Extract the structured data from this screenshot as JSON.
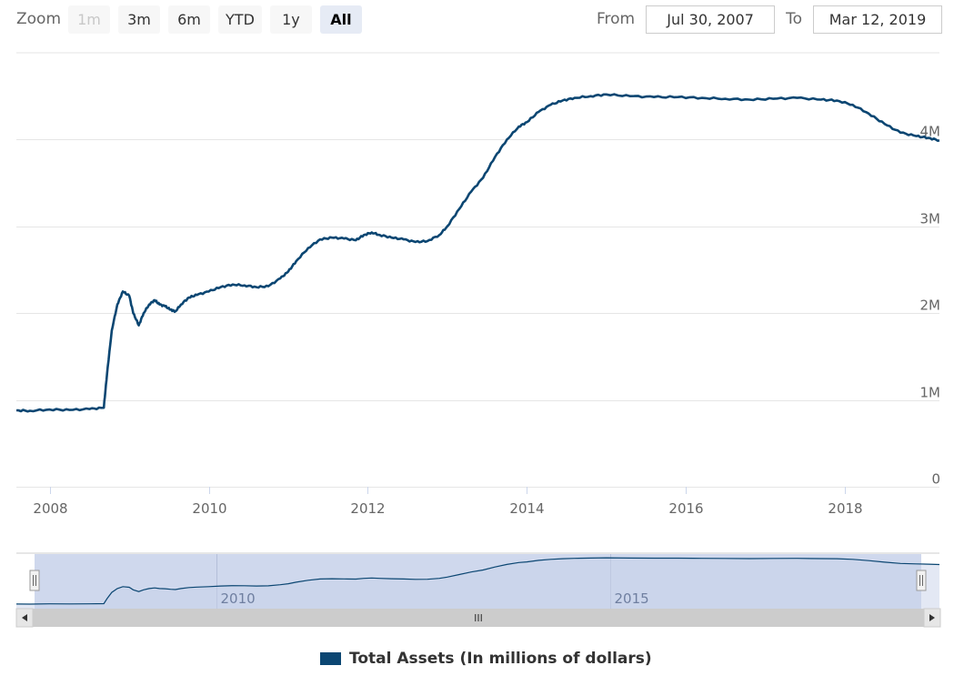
{
  "range_selector": {
    "zoom_label": "Zoom",
    "buttons": [
      {
        "label": "1m",
        "state": "disabled"
      },
      {
        "label": "3m",
        "state": "normal"
      },
      {
        "label": "6m",
        "state": "normal"
      },
      {
        "label": "YTD",
        "state": "normal"
      },
      {
        "label": "1y",
        "state": "normal"
      },
      {
        "label": "All",
        "state": "selected"
      }
    ],
    "from_label": "From",
    "from_value": "Jul 30, 2007",
    "to_label": "To",
    "to_value": "Mar 12, 2019"
  },
  "navigator": {
    "labels": [
      "2010",
      "2015"
    ],
    "scrollbar_grip": "III"
  },
  "colors": {
    "series": "#0b4672",
    "navigator_fill": "#c7d1ea",
    "grid": "#e6e6e6"
  },
  "chart_data": {
    "type": "line",
    "title": "",
    "xlabel": "",
    "ylabel": "",
    "xlim": [
      2007.58,
      2019.19
    ],
    "ylim": [
      0,
      5000000
    ],
    "y_ticks": [
      0,
      1000000,
      2000000,
      3000000,
      4000000
    ],
    "y_tick_labels": [
      "0",
      "1M",
      "2M",
      "3M",
      "4M"
    ],
    "x_ticks": [
      2008,
      2010,
      2012,
      2014,
      2016,
      2018
    ],
    "x_tick_labels": [
      "2008",
      "2010",
      "2012",
      "2014",
      "2016",
      "2018"
    ],
    "legend": {
      "position": "bottom-center"
    },
    "series": [
      {
        "name": "Total Assets (In millions of dollars)",
        "x": [
          2007.58,
          2007.75,
          2008.0,
          2008.25,
          2008.5,
          2008.68,
          2008.72,
          2008.78,
          2008.85,
          2008.92,
          2009.0,
          2009.05,
          2009.12,
          2009.18,
          2009.25,
          2009.32,
          2009.38,
          2009.45,
          2009.52,
          2009.58,
          2009.65,
          2009.75,
          2009.85,
          2010.0,
          2010.15,
          2010.3,
          2010.45,
          2010.6,
          2010.75,
          2010.9,
          2011.0,
          2011.1,
          2011.25,
          2011.4,
          2011.55,
          2011.7,
          2011.85,
          2011.95,
          2012.05,
          2012.15,
          2012.3,
          2012.45,
          2012.6,
          2012.75,
          2012.9,
          2013.0,
          2013.15,
          2013.3,
          2013.45,
          2013.6,
          2013.75,
          2013.9,
          2014.0,
          2014.15,
          2014.3,
          2014.45,
          2014.6,
          2014.8,
          2015.0,
          2015.3,
          2015.6,
          2015.9,
          2016.2,
          2016.5,
          2016.8,
          2017.1,
          2017.4,
          2017.7,
          2017.9,
          2018.1,
          2018.3,
          2018.5,
          2018.7,
          2018.9,
          2019.05,
          2019.19
        ],
        "values": [
          880000,
          875000,
          890000,
          885000,
          895000,
          910000,
          1300000,
          1800000,
          2100000,
          2250000,
          2200000,
          2000000,
          1860000,
          2000000,
          2100000,
          2150000,
          2100000,
          2080000,
          2040000,
          2020000,
          2100000,
          2180000,
          2210000,
          2250000,
          2300000,
          2330000,
          2320000,
          2300000,
          2310000,
          2400000,
          2480000,
          2600000,
          2750000,
          2850000,
          2870000,
          2860000,
          2840000,
          2900000,
          2930000,
          2900000,
          2870000,
          2850000,
          2820000,
          2830000,
          2900000,
          3000000,
          3200000,
          3400000,
          3560000,
          3800000,
          4000000,
          4150000,
          4200000,
          4320000,
          4400000,
          4450000,
          4480000,
          4500000,
          4520000,
          4500000,
          4490000,
          4490000,
          4480000,
          4470000,
          4460000,
          4470000,
          4480000,
          4460000,
          4450000,
          4400000,
          4300000,
          4180000,
          4080000,
          4040000,
          4020000,
          3990000
        ]
      }
    ]
  }
}
